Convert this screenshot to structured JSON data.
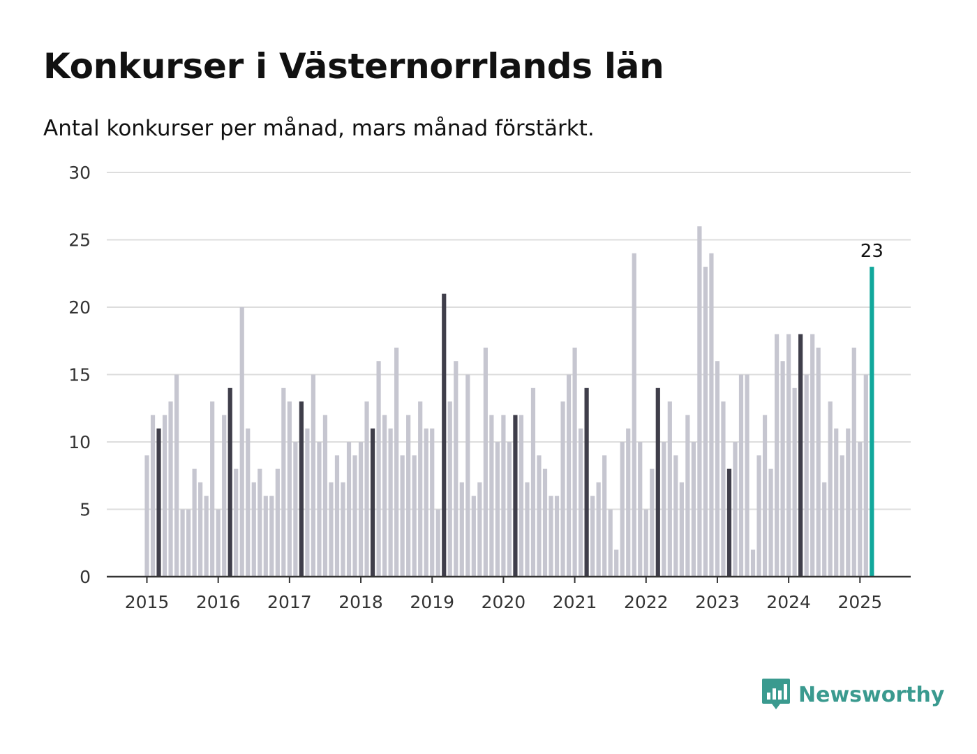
{
  "title": "Konkurser i Västernorrlands län",
  "subtitle": "Antal konkurser per månad, mars månad förstärkt.",
  "brand": "Newsworthy",
  "colors": {
    "bar": "#c6c6d0",
    "highlight": "#3f3e4a",
    "latest": "#12a89c",
    "grid": "#dddddd",
    "axis": "#333333",
    "brand": "#3a9a8f"
  },
  "chart_data": {
    "type": "bar",
    "ylim": [
      0,
      30
    ],
    "yticks": [
      0,
      5,
      10,
      15,
      20,
      25,
      30
    ],
    "x_tick_labels": [
      "2015",
      "2016",
      "2017",
      "2018",
      "2019",
      "2020",
      "2021",
      "2022",
      "2023",
      "2024",
      "2025"
    ],
    "start": "2015-01",
    "highlight_month": 3,
    "series": [
      {
        "values": [
          9,
          12,
          11,
          12,
          13,
          15,
          5,
          5,
          8,
          7,
          6,
          13,
          5,
          12,
          14,
          8,
          20,
          11,
          7,
          8,
          6,
          6,
          8,
          14,
          13,
          10,
          13,
          11,
          15,
          10,
          12,
          7,
          9,
          7,
          10,
          9,
          10,
          13,
          11,
          16,
          12,
          11,
          17,
          9,
          12,
          9,
          13,
          11,
          11,
          5,
          21,
          13,
          16,
          7,
          15,
          6,
          7,
          17,
          12,
          10,
          12,
          10,
          12,
          12,
          7,
          14,
          9,
          8,
          6,
          6,
          13,
          15,
          17,
          11,
          14,
          6,
          7,
          9,
          5,
          2,
          10,
          11,
          24,
          10,
          5,
          8,
          14,
          10,
          13,
          9,
          7,
          12,
          10,
          26,
          23,
          24,
          16,
          13,
          8,
          10,
          15,
          15,
          2,
          9,
          12,
          8,
          18,
          16,
          18,
          14,
          18,
          15,
          18,
          17,
          7,
          13,
          11,
          9,
          11,
          17,
          10,
          15,
          23
        ]
      }
    ],
    "annotations": [
      {
        "text": "23",
        "target": "last"
      }
    ]
  }
}
